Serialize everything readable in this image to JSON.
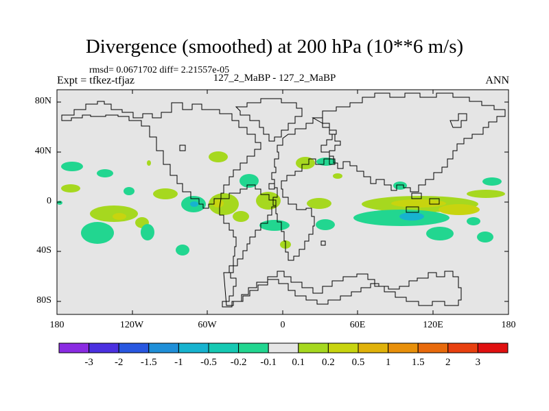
{
  "title": "Divergence (smoothed) at 200 hPa (10**6 m/s)",
  "stats": "rmsd= 0.0671702  diff= 2.21557e-05",
  "expt": "Expt = tfkez-tfjaz",
  "case": "127_2_MaBP - 127_2_MaBP",
  "season": "ANN",
  "map": {
    "background_color": "#e5e5e5",
    "coastline_color": "#000000",
    "lon_labels": [
      "180",
      "120W",
      "60W",
      "0",
      "60E",
      "120E",
      "180"
    ],
    "lat_labels": [
      "80N",
      "40N",
      "0",
      "40S",
      "80S"
    ]
  },
  "colorbar": {
    "labels": [
      "-3",
      "-2",
      "-1.5",
      "-1",
      "-0.5",
      "-0.2",
      "-0.1",
      "0.1",
      "0.2",
      "0.5",
      "1",
      "1.5",
      "2",
      "3"
    ],
    "colors": [
      "#8a2be2",
      "#4b30e0",
      "#2857e0",
      "#1f8fd8",
      "#17b3cf",
      "#16c9b3",
      "#22d690",
      "#e6e6e6",
      "#a6d81f",
      "#c8d40f",
      "#e0b20a",
      "#e8900a",
      "#e86a0c",
      "#e8400f",
      "#e01010"
    ]
  }
}
